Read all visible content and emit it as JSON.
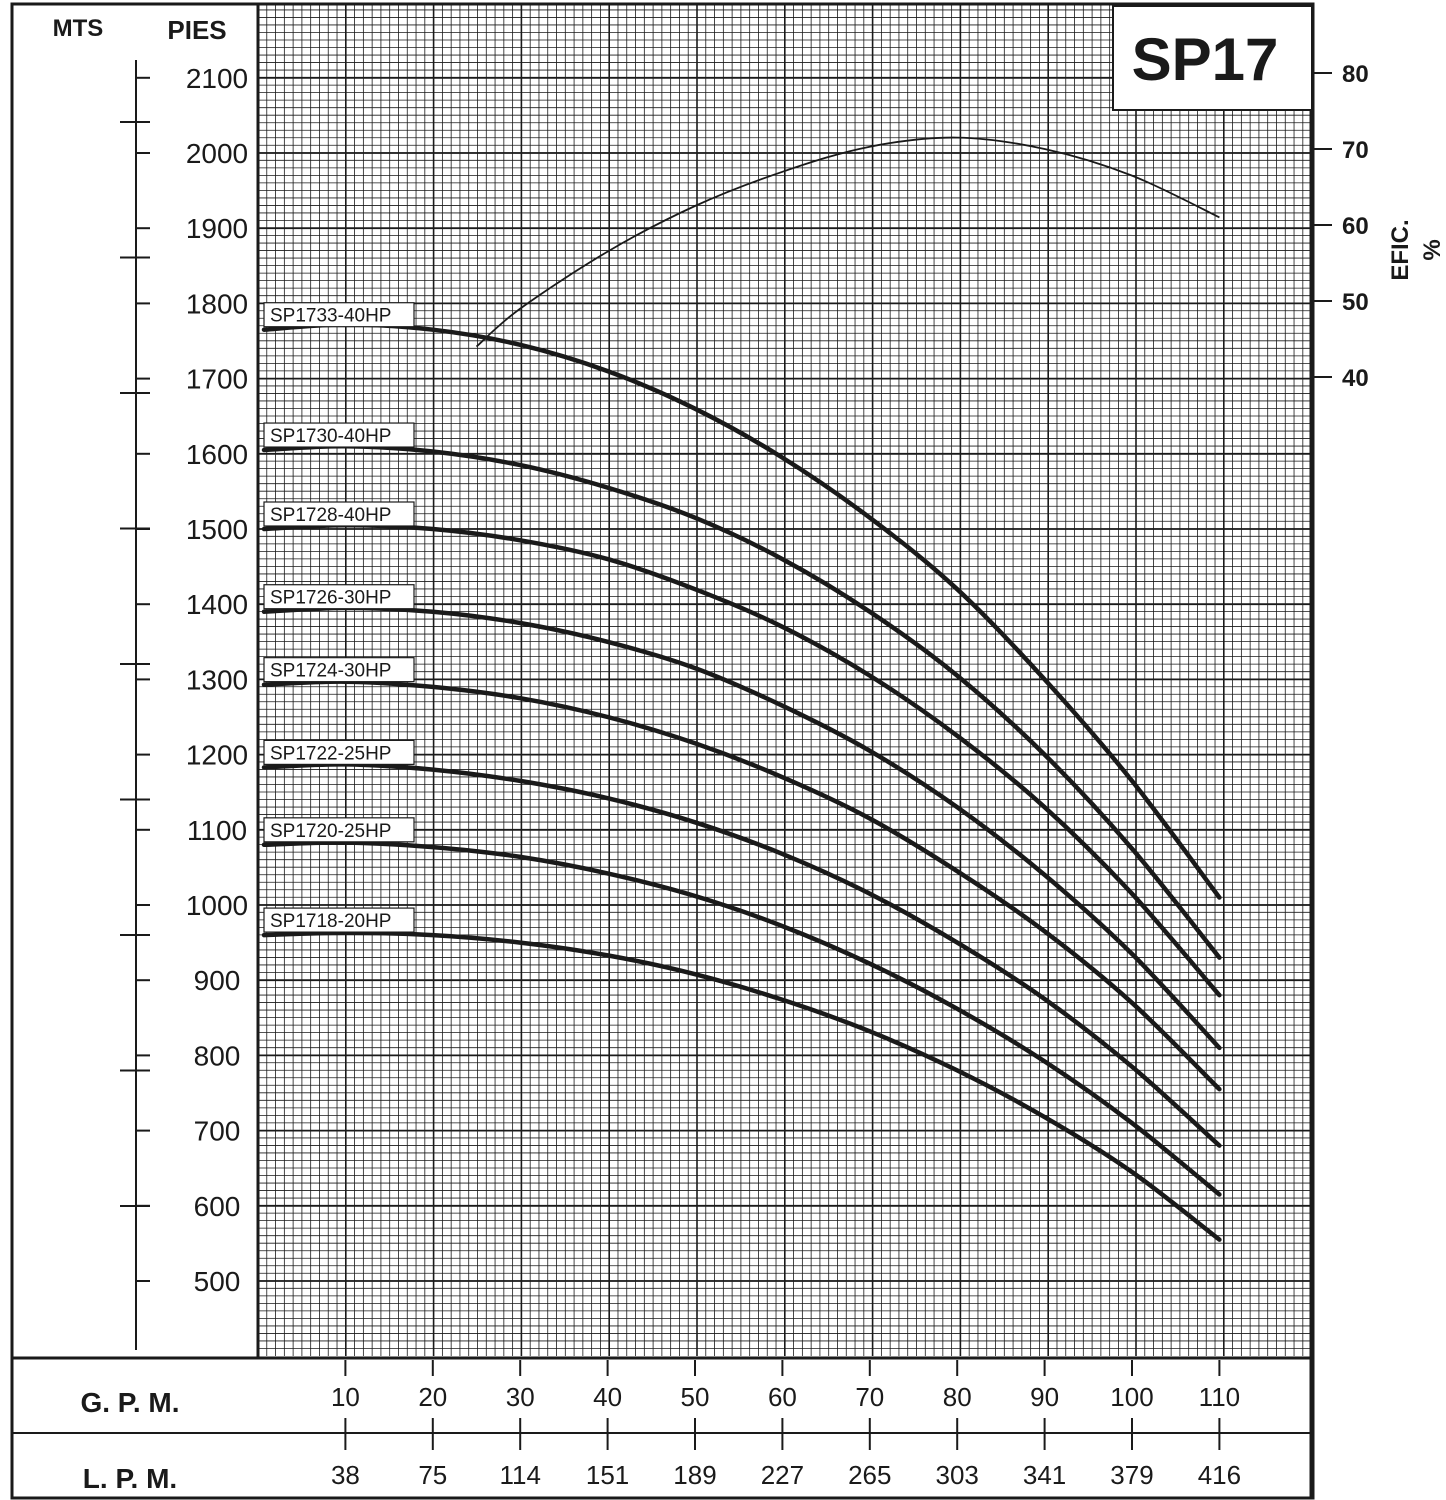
{
  "chart_data": {
    "type": "line",
    "title": "SP17",
    "left_axis": {
      "label": "MTS"
    },
    "y_axis": {
      "label": "PIES",
      "ticks": [
        500,
        600,
        700,
        800,
        900,
        1000,
        1100,
        1200,
        1300,
        1400,
        1500,
        1600,
        1700,
        1800,
        1900,
        2000,
        2100
      ],
      "ylim": [
        410,
        2180
      ]
    },
    "efficiency_axis": {
      "label_line1": "EFIC.",
      "label_line2": "%",
      "ticks": [
        40,
        50,
        60,
        70,
        80
      ]
    },
    "x_axis": {
      "gpm_label": "G. P. M.",
      "lpm_label": "L. P. M.",
      "gpm_ticks": [
        10,
        20,
        30,
        40,
        50,
        60,
        70,
        80,
        90,
        100,
        110
      ],
      "lpm_ticks": [
        "38",
        "75",
        "114",
        "151",
        "189",
        "227",
        "265",
        "303",
        "341",
        "379",
        "416"
      ],
      "xlim": [
        0,
        110
      ]
    },
    "series": [
      {
        "name": "SP1733-40HP",
        "x": [
          0,
          10,
          20,
          30,
          40,
          50,
          60,
          70,
          80,
          90,
          100,
          110
        ],
        "y": [
          1765,
          1772,
          1765,
          1745,
          1710,
          1660,
          1595,
          1515,
          1420,
          1300,
          1165,
          1010
        ]
      },
      {
        "name": "SP1730-40HP",
        "x": [
          0,
          10,
          20,
          30,
          40,
          50,
          60,
          70,
          80,
          90,
          100,
          110
        ],
        "y": [
          1605,
          1610,
          1603,
          1585,
          1555,
          1515,
          1460,
          1390,
          1305,
          1200,
          1075,
          930
        ]
      },
      {
        "name": "SP1728-40HP",
        "x": [
          0,
          10,
          20,
          30,
          40,
          50,
          60,
          70,
          80,
          90,
          100,
          110
        ],
        "y": [
          1500,
          1505,
          1500,
          1485,
          1460,
          1420,
          1370,
          1305,
          1225,
          1130,
          1015,
          880
        ]
      },
      {
        "name": "SP1726-30HP",
        "x": [
          0,
          10,
          20,
          30,
          40,
          50,
          60,
          70,
          80,
          90,
          100,
          110
        ],
        "y": [
          1390,
          1395,
          1390,
          1375,
          1350,
          1315,
          1265,
          1205,
          1130,
          1040,
          935,
          810
        ]
      },
      {
        "name": "SP1724-30HP",
        "x": [
          0,
          10,
          20,
          30,
          40,
          50,
          60,
          70,
          80,
          90,
          100,
          110
        ],
        "y": [
          1293,
          1297,
          1290,
          1275,
          1250,
          1215,
          1170,
          1115,
          1045,
          965,
          870,
          755
        ]
      },
      {
        "name": "SP1722-25HP",
        "x": [
          0,
          10,
          20,
          30,
          40,
          50,
          60,
          70,
          80,
          90,
          100,
          110
        ],
        "y": [
          1183,
          1187,
          1180,
          1165,
          1142,
          1110,
          1068,
          1015,
          950,
          875,
          785,
          680
        ]
      },
      {
        "name": "SP1720-25HP",
        "x": [
          0,
          10,
          20,
          30,
          40,
          50,
          60,
          70,
          80,
          90,
          100,
          110
        ],
        "y": [
          1080,
          1083,
          1077,
          1064,
          1042,
          1012,
          972,
          922,
          862,
          792,
          710,
          615
        ]
      },
      {
        "name": "SP1718-20HP",
        "x": [
          0,
          10,
          20,
          30,
          40,
          50,
          60,
          70,
          80,
          90,
          100,
          110
        ],
        "y": [
          960,
          963,
          960,
          950,
          933,
          908,
          874,
          832,
          780,
          718,
          645,
          555
        ]
      }
    ],
    "efficiency_curve": {
      "x": [
        25,
        30,
        40,
        50,
        60,
        70,
        80,
        90,
        100,
        110
      ],
      "y": [
        44,
        49,
        56.5,
        62.5,
        67,
        70.3,
        71.5,
        70,
        66.5,
        61
      ]
    },
    "grid": true,
    "legend": "labels at curve start (left)"
  }
}
